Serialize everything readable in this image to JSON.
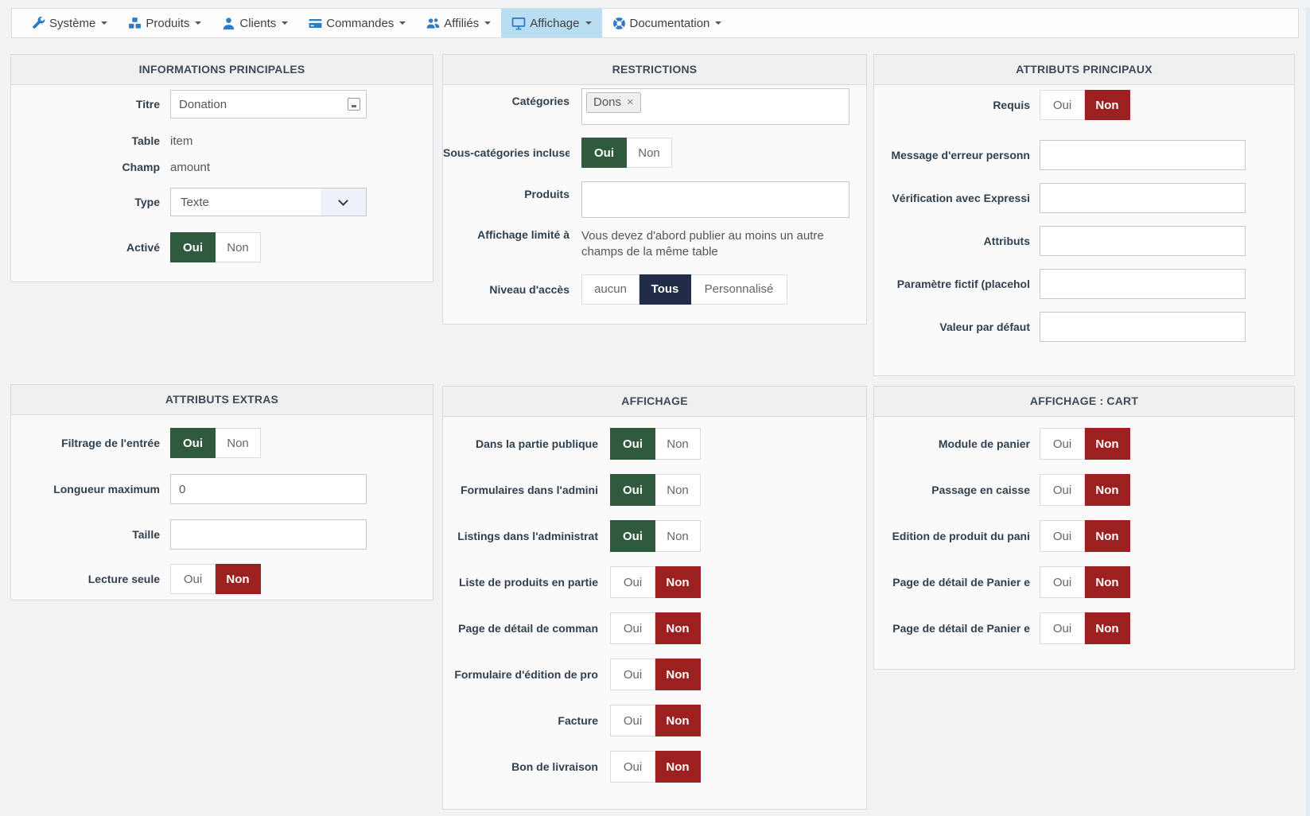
{
  "nav": {
    "items": [
      {
        "label": "Système",
        "icon": "wrench-icon",
        "active": false
      },
      {
        "label": "Produits",
        "icon": "cubes-icon",
        "active": false
      },
      {
        "label": "Clients",
        "icon": "user-icon",
        "active": false
      },
      {
        "label": "Commandes",
        "icon": "credit-card-icon",
        "active": false
      },
      {
        "label": "Affiliés",
        "icon": "users-icon",
        "active": false
      },
      {
        "label": "Affichage",
        "icon": "desktop-icon",
        "active": true
      },
      {
        "label": "Documentation",
        "icon": "life-ring-icon",
        "active": false
      }
    ]
  },
  "labels": {
    "oui": "Oui",
    "non": "Non"
  },
  "panels": {
    "informations_principales": {
      "title": "INFORMATIONS PRINCIPALES",
      "titre": {
        "label": "Titre",
        "value": "Donation"
      },
      "table": {
        "label": "Table",
        "value": "item"
      },
      "champ": {
        "label": "Champ",
        "value": "amount"
      },
      "type": {
        "label": "Type",
        "value": "Texte"
      },
      "active": {
        "label": "Activé",
        "value": "Oui"
      }
    },
    "restrictions": {
      "title": "RESTRICTIONS",
      "categories": {
        "label": "Catégories",
        "tags": [
          "Dons"
        ],
        "remove_glyph": "×"
      },
      "sous_categories": {
        "label": "Sous-catégories incluses",
        "value": "Oui"
      },
      "produits": {
        "label": "Produits",
        "value": ""
      },
      "affichage_limite": {
        "label": "Affichage limité à",
        "note": "Vous devez d'abord publier au moins un autre champs de la même table"
      },
      "niveau_acces": {
        "label": "Niveau d'accès",
        "options": [
          "aucun",
          "Tous",
          "Personnalisé"
        ],
        "selected": "Tous"
      }
    },
    "attributs_principaux": {
      "title": "ATTRIBUTS PRINCIPAUX",
      "requis": {
        "label": "Requis",
        "value": "Non"
      },
      "message_erreur": {
        "label": "Message d'erreur personn",
        "value": ""
      },
      "verification": {
        "label": "Vérification avec Expressi",
        "value": ""
      },
      "attributs": {
        "label": "Attributs",
        "value": ""
      },
      "parametre_fictif": {
        "label": "Paramètre fictif (placehol",
        "value": ""
      },
      "valeur_defaut": {
        "label": "Valeur par défaut",
        "value": ""
      }
    },
    "attributs_extras": {
      "title": "ATTRIBUTS EXTRAS",
      "filtrage": {
        "label": "Filtrage de l'entrée",
        "value": "Oui"
      },
      "longueur_maximum": {
        "label": "Longueur maximum",
        "value": "0"
      },
      "taille": {
        "label": "Taille",
        "value": ""
      },
      "lecture_seule": {
        "label": "Lecture seule",
        "value": "Non"
      }
    },
    "affichage": {
      "title": "AFFICHAGE",
      "rows": [
        {
          "label": "Dans la partie publique",
          "value": "Oui"
        },
        {
          "label": "Formulaires dans l'admini",
          "value": "Oui"
        },
        {
          "label": "Listings dans l'administrat",
          "value": "Oui"
        },
        {
          "label": "Liste de produits en partie",
          "value": "Non"
        },
        {
          "label": "Page de détail de comman",
          "value": "Non"
        },
        {
          "label": "Formulaire d'édition de pro",
          "value": "Non"
        },
        {
          "label": "Facture",
          "value": "Non"
        },
        {
          "label": "Bon de livraison",
          "value": "Non"
        }
      ]
    },
    "affichage_cart": {
      "title": "AFFICHAGE : CART",
      "rows": [
        {
          "label": "Module de panier",
          "value": "Non"
        },
        {
          "label": "Passage en caisse",
          "value": "Non"
        },
        {
          "label": "Edition de produit du pani",
          "value": "Non"
        },
        {
          "label": "Page de détail de Panier e",
          "value": "Non"
        },
        {
          "label": "Page de détail de Panier e",
          "value": "Non"
        }
      ]
    }
  },
  "colors": {
    "toggle_yes_active": "#2f5a3e",
    "toggle_no_active": "#9d2021",
    "access_selected_bg": "#202c48",
    "nav_icon": "#2e7cc3",
    "nav_active_bg": "#b9ddf2"
  }
}
